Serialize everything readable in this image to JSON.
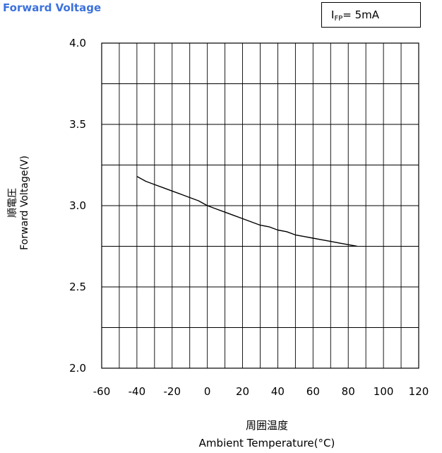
{
  "header": {
    "title": "Forward Voltage",
    "condition": {
      "main": "I",
      "sub": "FP",
      "rest": "= 5mA"
    }
  },
  "chart_data": {
    "type": "line",
    "title": "Forward Voltage",
    "xlabel_ja": "周囲温度",
    "xlabel": "Ambient Temperature(°C)",
    "ylabel_ja": "順電圧",
    "ylabel": "Forward Voltage(V)",
    "xlim": [
      -60,
      120
    ],
    "ylim": [
      2.0,
      4.0
    ],
    "xticks": [
      -60,
      -40,
      -20,
      0,
      20,
      40,
      60,
      80,
      100,
      120
    ],
    "yticks": [
      2.0,
      2.5,
      3.0,
      3.5,
      4.0
    ],
    "ytick_labels": [
      "2.0",
      "2.5",
      "3.0",
      "3.5",
      "4.0"
    ],
    "grid": true,
    "x_minor_step": 10,
    "y_minor_step": 0.25,
    "series": [
      {
        "color": "#000000",
        "x": [
          -40,
          -35,
          -30,
          -25,
          -20,
          -15,
          -10,
          -5,
          0,
          5,
          10,
          15,
          20,
          25,
          30,
          35,
          40,
          45,
          50,
          55,
          60,
          65,
          70,
          75,
          80,
          85
        ],
        "y": [
          3.18,
          3.15,
          3.13,
          3.11,
          3.09,
          3.07,
          3.05,
          3.03,
          3.0,
          2.98,
          2.96,
          2.94,
          2.92,
          2.9,
          2.88,
          2.87,
          2.85,
          2.84,
          2.82,
          2.81,
          2.8,
          2.79,
          2.78,
          2.77,
          2.76,
          2.75
        ]
      }
    ]
  }
}
